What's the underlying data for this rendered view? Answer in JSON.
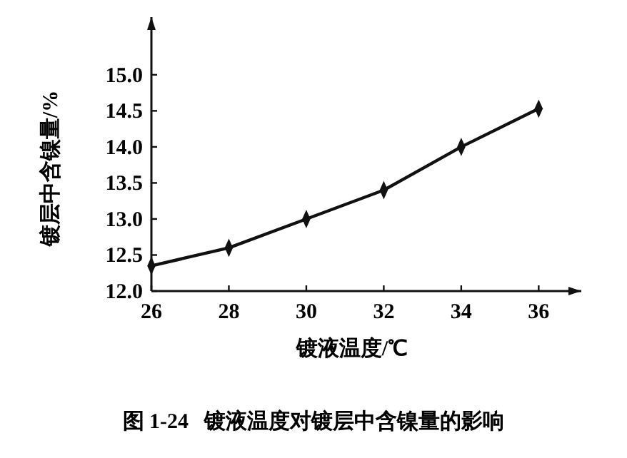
{
  "chart_data": {
    "type": "line",
    "xlabel": "镀液温度/℃",
    "ylabel": "镀层中含镍量/%",
    "annotations": [
      "图 1-24   镀液温度对镀层中含镍量的影响"
    ],
    "x": [
      26,
      28,
      30,
      32,
      34,
      36
    ],
    "series": [
      {
        "color": "#111111",
        "values": [
          12.35,
          12.6,
          13.0,
          13.4,
          14.0,
          14.53
        ]
      }
    ],
    "xlim": [
      26,
      37.1
    ],
    "xticks": [
      26,
      28,
      30,
      32,
      34,
      36
    ],
    "ylim": [
      12,
      15.8
    ],
    "yticks": [
      {
        "value": 12,
        "label": "12.0"
      },
      {
        "value": 12.5,
        "label": "12.5"
      },
      {
        "value": 13,
        "label": "13.0"
      },
      {
        "value": 13.5,
        "label": "13.5"
      },
      {
        "value": 14,
        "label": "14.0"
      },
      {
        "value": 14.5,
        "label": "14.5"
      },
      {
        "value": 15,
        "label": "15.0"
      }
    ],
    "marker": "diamond",
    "line_style": "solid"
  }
}
